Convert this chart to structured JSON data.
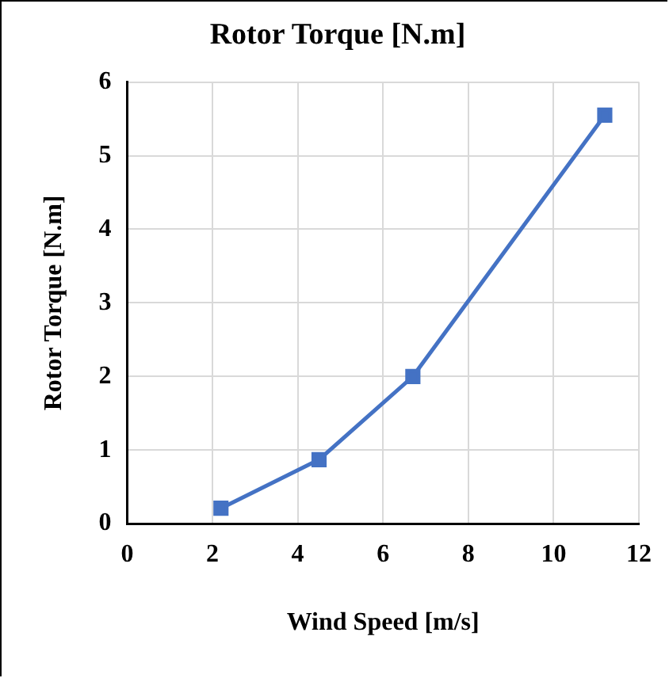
{
  "chart_data": {
    "type": "line",
    "title": "Rotor Torque [N.m]",
    "xlabel": "Wind Speed [m/s]",
    "ylabel": "Rotor Torque [N.m]",
    "x": [
      2.2,
      4.5,
      6.7,
      11.2
    ],
    "series": [
      {
        "color": "#4472c4",
        "values": [
          0.21,
          0.87,
          2.0,
          5.55
        ]
      }
    ],
    "xlim": [
      0,
      12
    ],
    "xticks": [
      0,
      2,
      4,
      6,
      8,
      10,
      12
    ],
    "ylim": [
      0,
      6
    ],
    "yticks": [
      0,
      1,
      2,
      3,
      4,
      5,
      6
    ],
    "grid": true,
    "marker": "square",
    "line_style": "solid",
    "legend": false
  }
}
